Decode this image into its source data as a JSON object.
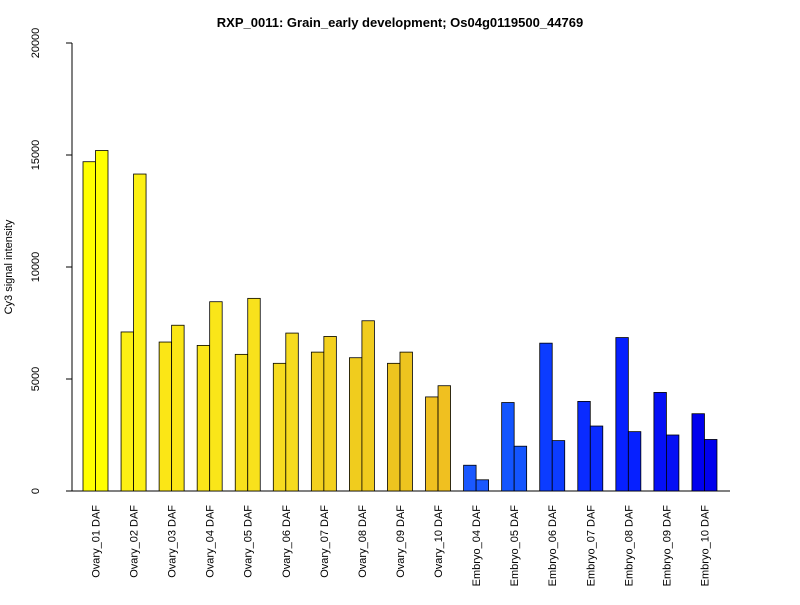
{
  "chart_data": {
    "type": "bar",
    "title": "RXP_0011: Grain_early development; Os04g0119500_44769",
    "xlabel": "",
    "ylabel": "Cy3 signal intensity",
    "ylim": [
      0,
      20000
    ],
    "yticks": [
      "0",
      "5000",
      "10000",
      "15000",
      "20000"
    ],
    "grid": false,
    "categories": [
      "Ovary_01 DAF",
      "Ovary_02 DAF",
      "Ovary_03 DAF",
      "Ovary_04 DAF",
      "Ovary_05 DAF",
      "Ovary_06 DAF",
      "Ovary_07 DAF",
      "Ovary_08 DAF",
      "Ovary_09 DAF",
      "Ovary_10 DAF",
      "Embryo_04 DAF",
      "Embryo_05 DAF",
      "Embryo_06 DAF",
      "Embryo_07 DAF",
      "Embryo_08 DAF",
      "Embryo_09 DAF",
      "Embryo_10 DAF"
    ],
    "series": [
      {
        "values": [
          14700,
          7100,
          6650,
          6500,
          6100,
          5700,
          6200,
          5950,
          5700,
          4200,
          1150,
          3950,
          6600,
          4000,
          6850,
          4400,
          3450
        ]
      },
      {
        "values": [
          15200,
          14150,
          7400,
          8450,
          8600,
          7050,
          6900,
          7600,
          6200,
          4700,
          500,
          2000,
          2250,
          2900,
          2650,
          2500,
          2300
        ]
      }
    ],
    "bar_colors": [
      "#ffff00",
      "#fcf013",
      "#fbe616",
      "#fae619",
      "#f8e11c",
      "#f6db1f",
      "#f3d01e",
      "#f0cc1e",
      "#edc41f",
      "#f0c020",
      "#1a58ff",
      "#1355ff",
      "#0c3cff",
      "#0a2bff",
      "#0620ff",
      "#0510f5",
      "#0000ee"
    ]
  }
}
